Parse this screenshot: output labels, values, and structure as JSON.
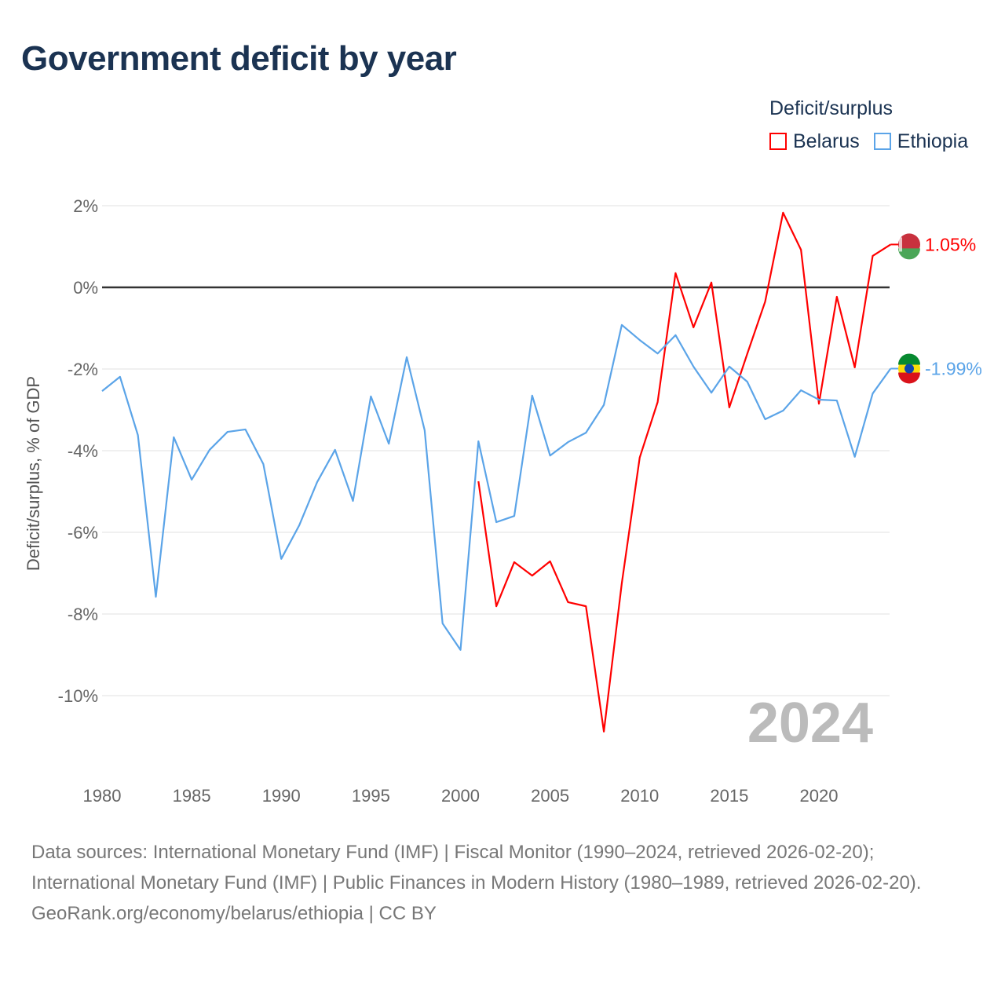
{
  "chart_data": {
    "type": "line",
    "title": "Government deficit by year",
    "ylabel": "Deficit/surplus, % of GDP",
    "xlabel": "",
    "ylim": [
      -12,
      2.5
    ],
    "xlim": [
      1980,
      2024
    ],
    "yticks": [
      2,
      0,
      -2,
      -4,
      -6,
      -8,
      -10
    ],
    "ytick_labels": [
      "2%",
      "0%",
      "-2%",
      "-4%",
      "-6%",
      "-8%",
      "-10%"
    ],
    "xticks": [
      1980,
      1985,
      1990,
      1995,
      2000,
      2005,
      2010,
      2015,
      2020
    ],
    "xtick_labels": [
      "1980",
      "1985",
      "1990",
      "1995",
      "2000",
      "2005",
      "2010",
      "2015",
      "2020"
    ],
    "legend_title": "Deficit/surplus",
    "legend_placement": "top-right",
    "year_label": "2024",
    "series": [
      {
        "name": "Belarus",
        "color": "#ff0000",
        "end_label": "1.05%",
        "x": [
          2001,
          2002,
          2003,
          2004,
          2005,
          2006,
          2007,
          2008,
          2009,
          2010,
          2011,
          2012,
          2013,
          2014,
          2015,
          2016,
          2017,
          2018,
          2019,
          2020,
          2021,
          2022,
          2023,
          2024
        ],
        "values": [
          -4.75,
          -7.81,
          -6.73,
          -7.06,
          -6.71,
          -7.71,
          -7.81,
          -10.88,
          -7.25,
          -4.17,
          -2.81,
          0.35,
          -0.98,
          0.12,
          -2.94,
          -1.63,
          -0.35,
          1.83,
          0.92,
          -2.85,
          -0.23,
          -1.96,
          0.77,
          1.05
        ]
      },
      {
        "name": "Ethiopia",
        "color": "#5ba4e8",
        "end_label": "-1.99%",
        "x": [
          1980,
          1981,
          1982,
          1983,
          1984,
          1985,
          1986,
          1987,
          1988,
          1989,
          1990,
          1991,
          1992,
          1993,
          1994,
          1995,
          1996,
          1997,
          1998,
          1999,
          2000,
          2001,
          2002,
          2003,
          2004,
          2005,
          2006,
          2007,
          2008,
          2009,
          2010,
          2011,
          2012,
          2013,
          2014,
          2015,
          2016,
          2017,
          2018,
          2019,
          2020,
          2021,
          2022,
          2023,
          2024
        ],
        "values": [
          -2.54,
          -2.19,
          -3.62,
          -7.58,
          -3.67,
          -4.71,
          -3.98,
          -3.54,
          -3.48,
          -4.33,
          -6.65,
          -5.83,
          -4.77,
          -3.98,
          -5.23,
          -2.67,
          -3.83,
          -1.71,
          -3.5,
          -8.23,
          -8.88,
          -3.77,
          -5.75,
          -5.6,
          -2.65,
          -4.12,
          -3.79,
          -3.56,
          -2.88,
          -0.92,
          -1.29,
          -1.62,
          -1.17,
          -1.94,
          -2.58,
          -1.94,
          -2.31,
          -3.23,
          -3.02,
          -2.52,
          -2.75,
          -2.77,
          -4.15,
          -2.6,
          -1.99
        ]
      }
    ]
  },
  "footer": {
    "sources": "Data sources: International Monetary Fund (IMF) | Fiscal Monitor (1990–2024, retrieved 2026-02-20); International Monetary Fund (IMF) | Public Finances in Modern History (1980–1989, retrieved 2026-02-20).",
    "link": "GeoRank.org/economy/belarus/ethiopia | CC BY"
  }
}
